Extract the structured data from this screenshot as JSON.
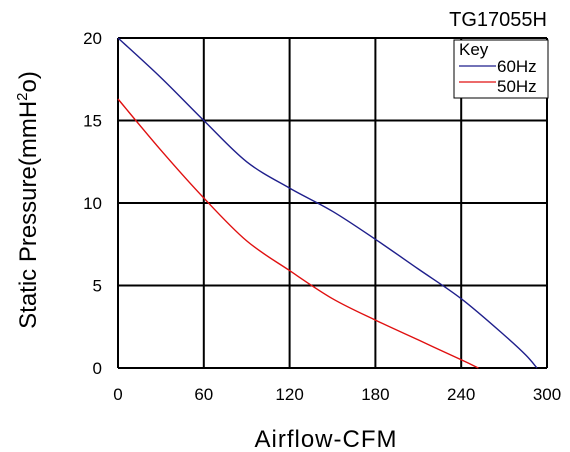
{
  "chart_data": {
    "type": "line",
    "title": "TG17055H",
    "xlabel": "Airflow-CFM",
    "ylabel_main": "Static Pressure(mmH",
    "ylabel_sup": "2",
    "ylabel_end": "o)",
    "xlim": [
      0,
      300
    ],
    "ylim": [
      0,
      20
    ],
    "xticks": [
      0,
      60,
      120,
      180,
      240,
      300
    ],
    "yticks": [
      0,
      5,
      10,
      15,
      20
    ],
    "xtick_labels": [
      "0",
      "60",
      "120",
      "180",
      "240",
      "300"
    ],
    "ytick_labels": [
      "0",
      "5",
      "10",
      "15",
      "20"
    ],
    "grid": true,
    "legend": {
      "title": "Key",
      "placement": "top-right"
    },
    "series": [
      {
        "name": "60Hz",
        "color": "#1f1f8c",
        "points": [
          [
            0,
            20
          ],
          [
            30,
            17.6
          ],
          [
            60,
            15.0
          ],
          [
            90,
            12.5
          ],
          [
            120,
            10.9
          ],
          [
            150,
            9.5
          ],
          [
            180,
            7.8
          ],
          [
            210,
            6.0
          ],
          [
            240,
            4.2
          ],
          [
            270,
            2.0
          ],
          [
            285,
            0.8
          ],
          [
            293,
            0
          ]
        ]
      },
      {
        "name": "50Hz",
        "color": "#e01010",
        "points": [
          [
            0,
            16.3
          ],
          [
            30,
            13.2
          ],
          [
            60,
            10.3
          ],
          [
            90,
            7.7
          ],
          [
            120,
            5.9
          ],
          [
            150,
            4.2
          ],
          [
            180,
            2.9
          ],
          [
            210,
            1.7
          ],
          [
            240,
            0.5
          ],
          [
            252,
            0
          ]
        ]
      }
    ]
  }
}
